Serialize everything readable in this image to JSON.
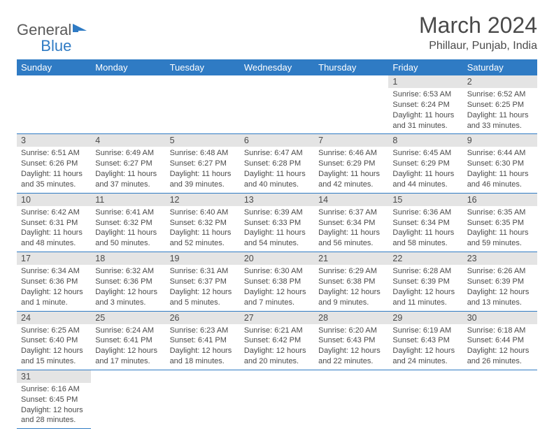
{
  "logo": {
    "part1": "General",
    "part2": "Blue"
  },
  "title": "March 2024",
  "location": "Phillaur, Punjab, India",
  "colors": {
    "header_bg": "#2f7bc4",
    "header_text": "#ffffff",
    "daynum_bg": "#e4e4e4",
    "text": "#4a4a4a",
    "border": "#2f7bc4"
  },
  "weekdays": [
    "Sunday",
    "Monday",
    "Tuesday",
    "Wednesday",
    "Thursday",
    "Friday",
    "Saturday"
  ],
  "weeks": [
    [
      null,
      null,
      null,
      null,
      null,
      {
        "n": "1",
        "sr": "6:53 AM",
        "ss": "6:24 PM",
        "dl": "11 hours and 31 minutes."
      },
      {
        "n": "2",
        "sr": "6:52 AM",
        "ss": "6:25 PM",
        "dl": "11 hours and 33 minutes."
      }
    ],
    [
      {
        "n": "3",
        "sr": "6:51 AM",
        "ss": "6:26 PM",
        "dl": "11 hours and 35 minutes."
      },
      {
        "n": "4",
        "sr": "6:49 AM",
        "ss": "6:27 PM",
        "dl": "11 hours and 37 minutes."
      },
      {
        "n": "5",
        "sr": "6:48 AM",
        "ss": "6:27 PM",
        "dl": "11 hours and 39 minutes."
      },
      {
        "n": "6",
        "sr": "6:47 AM",
        "ss": "6:28 PM",
        "dl": "11 hours and 40 minutes."
      },
      {
        "n": "7",
        "sr": "6:46 AM",
        "ss": "6:29 PM",
        "dl": "11 hours and 42 minutes."
      },
      {
        "n": "8",
        "sr": "6:45 AM",
        "ss": "6:29 PM",
        "dl": "11 hours and 44 minutes."
      },
      {
        "n": "9",
        "sr": "6:44 AM",
        "ss": "6:30 PM",
        "dl": "11 hours and 46 minutes."
      }
    ],
    [
      {
        "n": "10",
        "sr": "6:42 AM",
        "ss": "6:31 PM",
        "dl": "11 hours and 48 minutes."
      },
      {
        "n": "11",
        "sr": "6:41 AM",
        "ss": "6:32 PM",
        "dl": "11 hours and 50 minutes."
      },
      {
        "n": "12",
        "sr": "6:40 AM",
        "ss": "6:32 PM",
        "dl": "11 hours and 52 minutes."
      },
      {
        "n": "13",
        "sr": "6:39 AM",
        "ss": "6:33 PM",
        "dl": "11 hours and 54 minutes."
      },
      {
        "n": "14",
        "sr": "6:37 AM",
        "ss": "6:34 PM",
        "dl": "11 hours and 56 minutes."
      },
      {
        "n": "15",
        "sr": "6:36 AM",
        "ss": "6:34 PM",
        "dl": "11 hours and 58 minutes."
      },
      {
        "n": "16",
        "sr": "6:35 AM",
        "ss": "6:35 PM",
        "dl": "11 hours and 59 minutes."
      }
    ],
    [
      {
        "n": "17",
        "sr": "6:34 AM",
        "ss": "6:36 PM",
        "dl": "12 hours and 1 minute."
      },
      {
        "n": "18",
        "sr": "6:32 AM",
        "ss": "6:36 PM",
        "dl": "12 hours and 3 minutes."
      },
      {
        "n": "19",
        "sr": "6:31 AM",
        "ss": "6:37 PM",
        "dl": "12 hours and 5 minutes."
      },
      {
        "n": "20",
        "sr": "6:30 AM",
        "ss": "6:38 PM",
        "dl": "12 hours and 7 minutes."
      },
      {
        "n": "21",
        "sr": "6:29 AM",
        "ss": "6:38 PM",
        "dl": "12 hours and 9 minutes."
      },
      {
        "n": "22",
        "sr": "6:28 AM",
        "ss": "6:39 PM",
        "dl": "12 hours and 11 minutes."
      },
      {
        "n": "23",
        "sr": "6:26 AM",
        "ss": "6:39 PM",
        "dl": "12 hours and 13 minutes."
      }
    ],
    [
      {
        "n": "24",
        "sr": "6:25 AM",
        "ss": "6:40 PM",
        "dl": "12 hours and 15 minutes."
      },
      {
        "n": "25",
        "sr": "6:24 AM",
        "ss": "6:41 PM",
        "dl": "12 hours and 17 minutes."
      },
      {
        "n": "26",
        "sr": "6:23 AM",
        "ss": "6:41 PM",
        "dl": "12 hours and 18 minutes."
      },
      {
        "n": "27",
        "sr": "6:21 AM",
        "ss": "6:42 PM",
        "dl": "12 hours and 20 minutes."
      },
      {
        "n": "28",
        "sr": "6:20 AM",
        "ss": "6:43 PM",
        "dl": "12 hours and 22 minutes."
      },
      {
        "n": "29",
        "sr": "6:19 AM",
        "ss": "6:43 PM",
        "dl": "12 hours and 24 minutes."
      },
      {
        "n": "30",
        "sr": "6:18 AM",
        "ss": "6:44 PM",
        "dl": "12 hours and 26 minutes."
      }
    ],
    [
      {
        "n": "31",
        "sr": "6:16 AM",
        "ss": "6:45 PM",
        "dl": "12 hours and 28 minutes."
      },
      null,
      null,
      null,
      null,
      null,
      null
    ]
  ],
  "labels": {
    "sunrise": "Sunrise:",
    "sunset": "Sunset:",
    "daylight": "Daylight:"
  }
}
